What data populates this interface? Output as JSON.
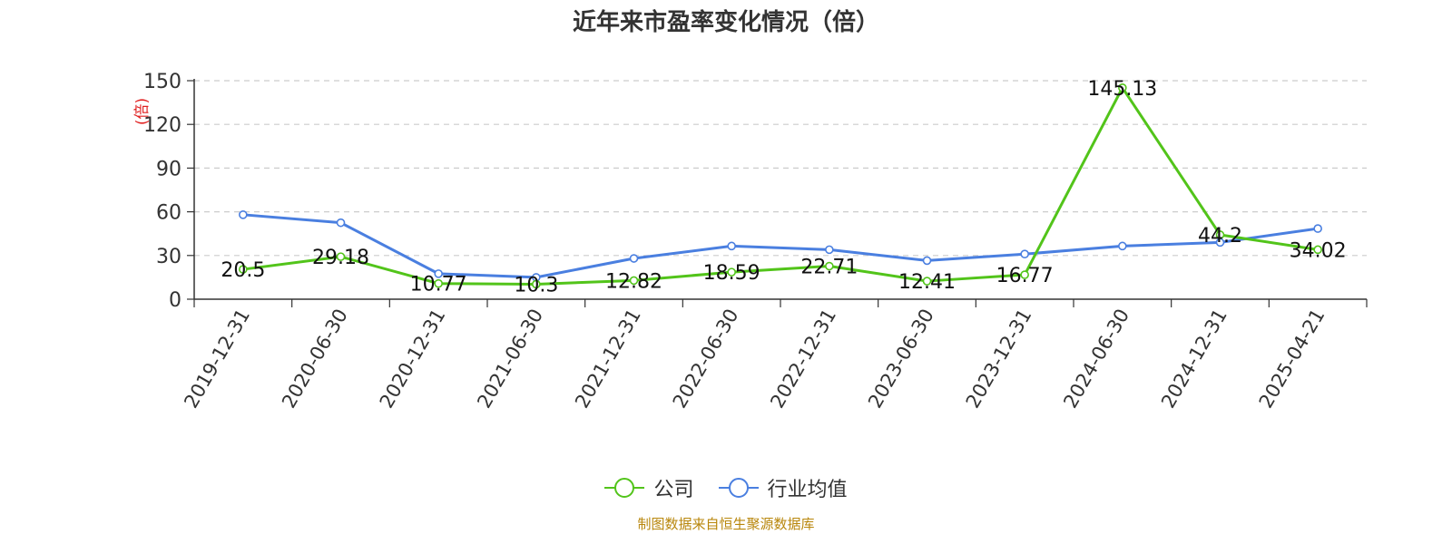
{
  "chart_data": {
    "type": "line",
    "title": "近年来市盈率变化情况（倍）",
    "ylabel": "(倍)",
    "xlabel": "",
    "categories": [
      "2019-12-31",
      "2020-06-30",
      "2020-12-31",
      "2021-06-30",
      "2021-12-31",
      "2022-06-30",
      "2022-12-31",
      "2023-06-30",
      "2023-12-31",
      "2024-06-30",
      "2024-12-31",
      "2025-04-21"
    ],
    "ylim": [
      0,
      150
    ],
    "yticks": [
      0,
      30,
      60,
      90,
      120,
      150
    ],
    "grid": true,
    "legend_position": "bottom",
    "series": [
      {
        "name": "公司",
        "color": "#52c41a",
        "values": [
          20.5,
          29.18,
          10.77,
          10.3,
          12.82,
          18.59,
          22.71,
          12.41,
          16.77,
          145.13,
          44.2,
          34.02
        ],
        "labels": [
          "20.5",
          "29.18",
          "10.77",
          "10.3",
          "12.82",
          "18.59",
          "22.71",
          "12.41",
          "16.77",
          "145.13",
          "44.2",
          "34.02"
        ]
      },
      {
        "name": "行业均值",
        "color": "#4a7fe0",
        "values": [
          58,
          52.5,
          17.5,
          15,
          28,
          36.5,
          34,
          26.5,
          31,
          36.5,
          39,
          48.5
        ]
      }
    ]
  },
  "source": "制图数据来自恒生聚源数据库"
}
